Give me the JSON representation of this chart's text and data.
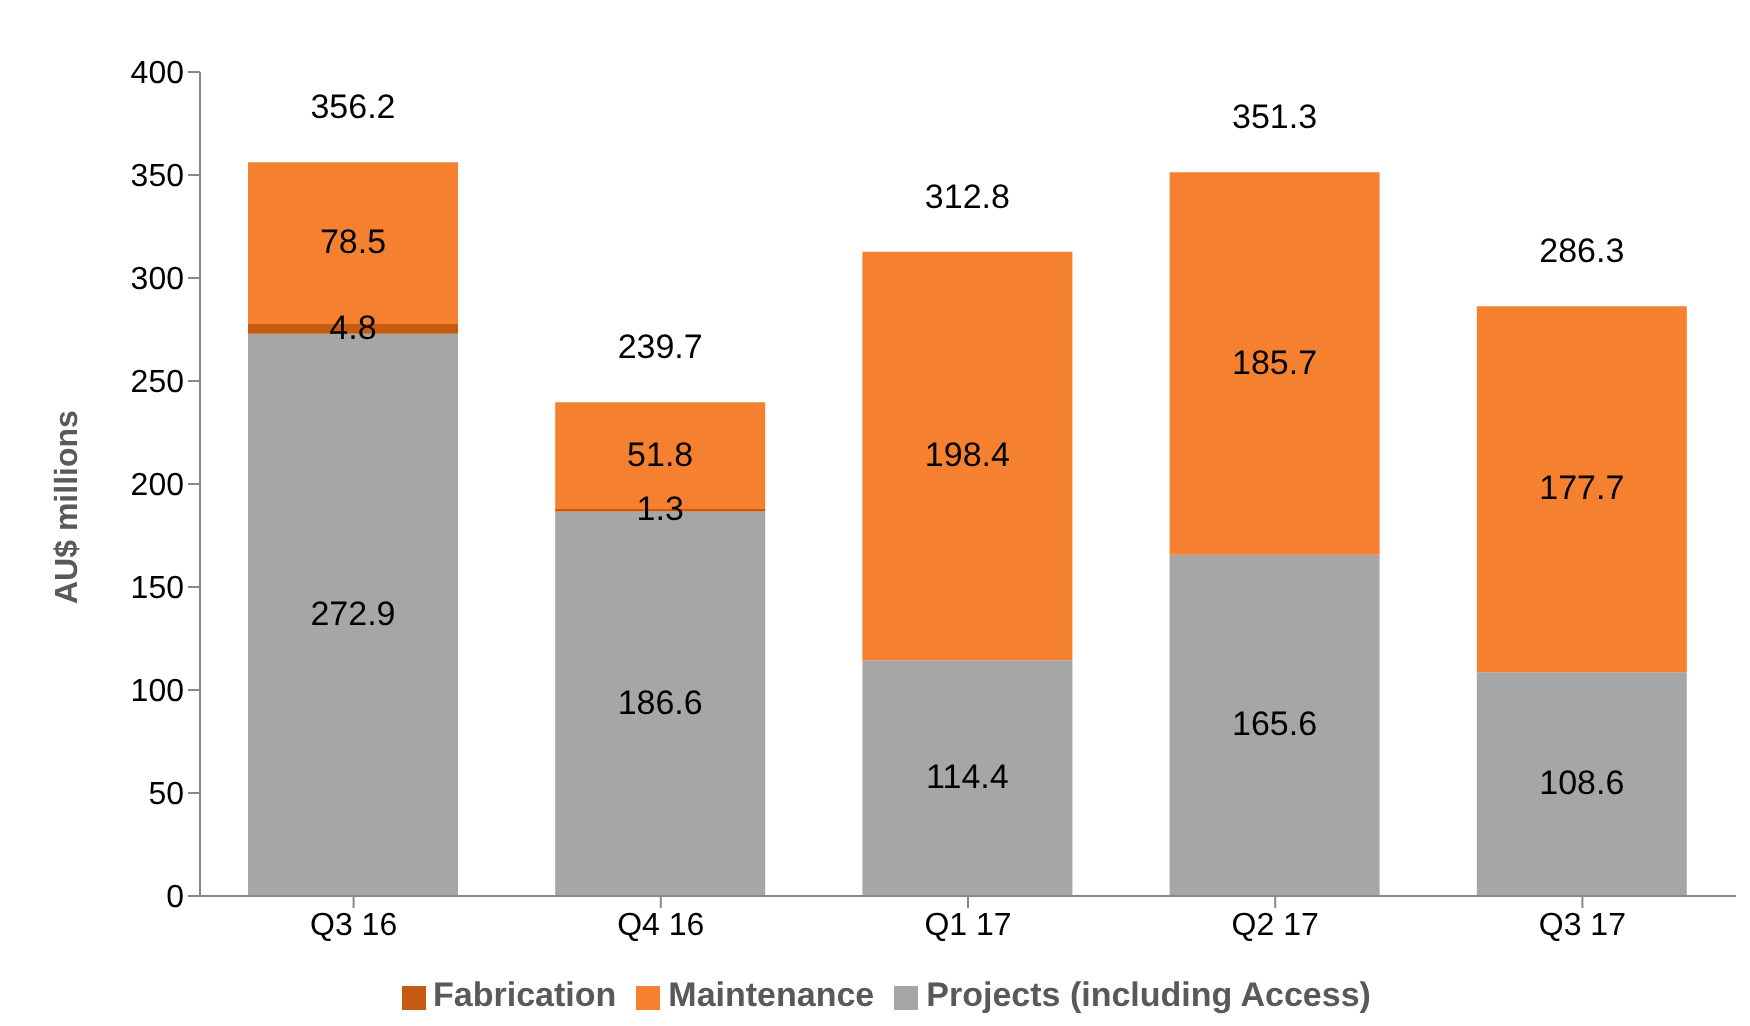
{
  "chart_data": {
    "type": "bar",
    "stacked": true,
    "ylabel": "AU$ millions",
    "categories": [
      "Q3 16",
      "Q4 16",
      "Q1 17",
      "Q2 17",
      "Q3 17"
    ],
    "series": [
      {
        "name": "Projects (including Access)",
        "color": "#a6a6a6",
        "values": [
          272.9,
          186.6,
          114.4,
          165.6,
          108.6
        ]
      },
      {
        "name": "Fabrication",
        "color": "#c55a11",
        "values": [
          4.8,
          1.3,
          null,
          null,
          null
        ]
      },
      {
        "name": "Maintenance",
        "color": "#f58030",
        "values": [
          78.5,
          51.8,
          198.4,
          185.7,
          177.7
        ]
      }
    ],
    "totals": [
      "356.2",
      "239.7",
      "312.8",
      "351.3",
      "286.3"
    ],
    "ylim": [
      0,
      400
    ],
    "yticks": [
      0,
      50,
      100,
      150,
      200,
      250,
      300,
      350,
      400
    ],
    "data_labels": true,
    "grid": false,
    "legend": "bottom"
  }
}
